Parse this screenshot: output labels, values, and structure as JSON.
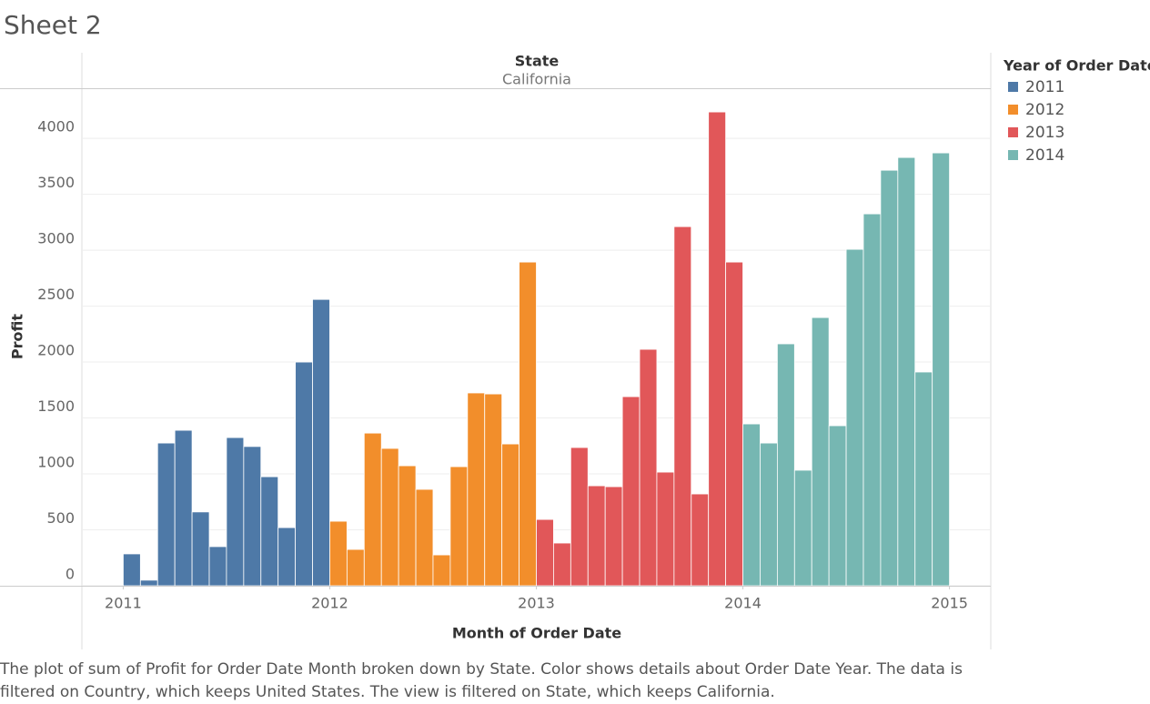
{
  "title": "Sheet 2",
  "caption": "The plot of sum of Profit for Order Date Month broken down by State.  Color shows details about Order Date Year. The data is filtered on Country, which keeps United States. The view is filtered on State, which keeps California.",
  "chart_data": {
    "type": "bar",
    "header_title": "State",
    "header_value": "California",
    "x_label": "Month of Order Date",
    "y_label": "Profit",
    "legend_title": "Year of Order Date",
    "xlim": [
      2010.8,
      2015.2
    ],
    "xticks": [
      2011,
      2012,
      2013,
      2014,
      2015
    ],
    "ylim": [
      0,
      4440
    ],
    "yticks": [
      0,
      500,
      1000,
      1500,
      2000,
      2500,
      3000,
      3500,
      4000
    ],
    "grid": true,
    "series": [
      {
        "name": "2011",
        "color": "#4e79a7",
        "values": [
          285,
          50,
          1276,
          1390,
          660,
          350,
          1325,
          1245,
          975,
          520,
          2000,
          2560
        ]
      },
      {
        "name": "2012",
        "color": "#f28e2b",
        "values": [
          577,
          325,
          1365,
          1228,
          1073,
          862,
          276,
          1065,
          1724,
          1715,
          1268,
          2894
        ]
      },
      {
        "name": "2013",
        "color": "#e15759",
        "values": [
          593,
          382,
          1236,
          894,
          886,
          1691,
          2114,
          1016,
          3211,
          821,
          4236,
          2894
        ]
      },
      {
        "name": "2014",
        "color": "#76b7b2",
        "values": [
          1447,
          1276,
          2163,
          1033,
          2398,
          1431,
          3008,
          3325,
          3715,
          3829,
          1911,
          3870
        ]
      }
    ]
  }
}
